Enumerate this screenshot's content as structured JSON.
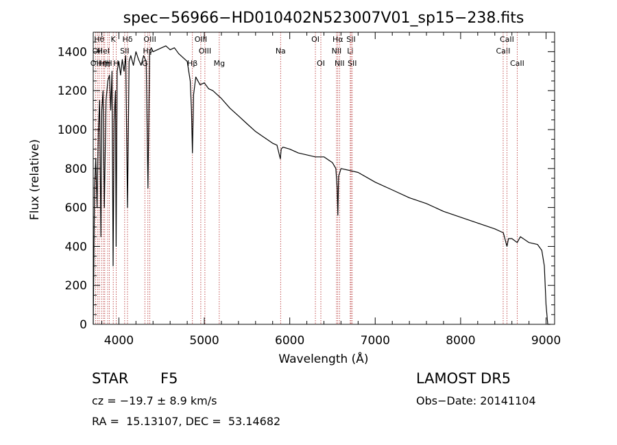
{
  "chart_data": {
    "type": "line",
    "title": "spec−56966−HD010402N523007V01_sp15−238.fits",
    "xlabel": "Wavelength (Å)",
    "ylabel": "Flux (relative)",
    "xlim": [
      3700,
      9100
    ],
    "ylim": [
      0,
      1500
    ],
    "xticks": [
      4000,
      5000,
      6000,
      7000,
      8000,
      9000
    ],
    "yticks": [
      0,
      200,
      400,
      600,
      800,
      1000,
      1200,
      1400
    ],
    "grid": false,
    "series": [
      {
        "color": "#000000",
        "x": [
          3700,
          3715,
          3730,
          3745,
          3760,
          3775,
          3790,
          3800,
          3815,
          3830,
          3850,
          3870,
          3890,
          3905,
          3920,
          3933,
          3945,
          3960,
          3968,
          3980,
          4000,
          4020,
          4040,
          4060,
          4080,
          4101,
          4120,
          4140,
          4170,
          4200,
          4230,
          4260,
          4290,
          4320,
          4340,
          4360,
          4380,
          4400,
          4450,
          4500,
          4550,
          4600,
          4650,
          4700,
          4750,
          4800,
          4835,
          4850,
          4861,
          4875,
          4900,
          4950,
          5000,
          5050,
          5100,
          5150,
          5200,
          5300,
          5400,
          5500,
          5600,
          5700,
          5800,
          5850,
          5890,
          5900,
          5920,
          6000,
          6100,
          6200,
          6300,
          6400,
          6500,
          6540,
          6555,
          6563,
          6572,
          6600,
          6700,
          6800,
          7000,
          7200,
          7400,
          7600,
          7800,
          8000,
          8200,
          8400,
          8500,
          8542,
          8560,
          8600,
          8662,
          8700,
          8800,
          8900,
          8950,
          8980,
          9000,
          9020,
          9040,
          9050
        ],
        "y": [
          0,
          700,
          850,
          600,
          1000,
          1150,
          450,
          1100,
          1200,
          600,
          1150,
          1250,
          1280,
          1100,
          1300,
          300,
          1050,
          1200,
          400,
          1300,
          1350,
          1280,
          1360,
          1300,
          1380,
          600,
          1350,
          1380,
          1330,
          1400,
          1360,
          1330,
          1380,
          1350,
          700,
          1400,
          1420,
          1400,
          1410,
          1420,
          1430,
          1410,
          1420,
          1390,
          1370,
          1350,
          1250,
          1100,
          880,
          1180,
          1270,
          1230,
          1240,
          1210,
          1200,
          1180,
          1160,
          1110,
          1070,
          1030,
          990,
          960,
          930,
          920,
          850,
          900,
          910,
          900,
          880,
          870,
          860,
          860,
          830,
          800,
          700,
          560,
          760,
          800,
          790,
          780,
          730,
          690,
          650,
          620,
          580,
          550,
          520,
          490,
          470,
          400,
          440,
          440,
          420,
          450,
          420,
          410,
          380,
          300,
          100,
          0,
          0,
          0
        ]
      }
    ],
    "lines": [
      {
        "wl": 3727,
        "label": "OII",
        "row": 2
      },
      {
        "wl": 3750,
        "label": "OII",
        "row": 1
      },
      {
        "wl": 3770,
        "label": "Hθ",
        "row": 0
      },
      {
        "wl": 3797,
        "label": "Hη",
        "row": 2
      },
      {
        "wl": 3820,
        "label": "HeI",
        "row": 1
      },
      {
        "wl": 3835,
        "label": "Hη",
        "row": 2
      },
      {
        "wl": 3869,
        "label": "H",
        "row": 2
      },
      {
        "wl": 3889,
        "label": "H",
        "row": 2
      },
      {
        "wl": 3934,
        "label": "K",
        "row": 0
      },
      {
        "wl": 3968,
        "label": "H",
        "row": 2
      },
      {
        "wl": 4068,
        "label": "SII",
        "row": 1
      },
      {
        "wl": 4101,
        "label": "Hδ",
        "row": 0
      },
      {
        "wl": 4304,
        "label": "G",
        "row": 2
      },
      {
        "wl": 4340,
        "label": "Hγ",
        "row": 1
      },
      {
        "wl": 4363,
        "label": "OIII",
        "row": 0
      },
      {
        "wl": 4861,
        "label": "Hβ",
        "row": 2
      },
      {
        "wl": 4959,
        "label": "OIII",
        "row": 0
      },
      {
        "wl": 5007,
        "label": "OIII",
        "row": 1
      },
      {
        "wl": 5175,
        "label": "Mg",
        "row": 2
      },
      {
        "wl": 5893,
        "label": "Na",
        "row": 1
      },
      {
        "wl": 6300,
        "label": "OI",
        "row": 0
      },
      {
        "wl": 6364,
        "label": "OI",
        "row": 2
      },
      {
        "wl": 6548,
        "label": "NII",
        "row": 1
      },
      {
        "wl": 6563,
        "label": "Hα",
        "row": 0
      },
      {
        "wl": 6583,
        "label": "NII",
        "row": 2
      },
      {
        "wl": 6708,
        "label": "Li",
        "row": 1
      },
      {
        "wl": 6717,
        "label": "SII",
        "row": 0
      },
      {
        "wl": 6731,
        "label": "SII",
        "row": 2
      },
      {
        "wl": 8498,
        "label": "CaII",
        "row": 1
      },
      {
        "wl": 8542,
        "label": "CaII",
        "row": 0
      },
      {
        "wl": 8662,
        "label": "CaII",
        "row": 2
      }
    ]
  },
  "info": {
    "object_class": "STAR",
    "subclass": "F5",
    "survey": "LAMOST DR5",
    "cz": "cz = −19.7 ± 8.9 km/s",
    "obs_date": "Obs−Date: 20141104",
    "coords": "RA =  15.13107, DEC =  53.14682"
  }
}
